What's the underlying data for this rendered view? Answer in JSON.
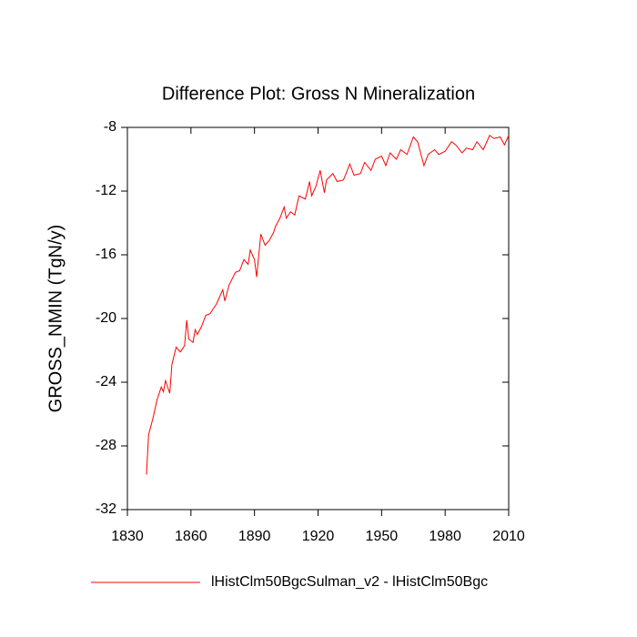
{
  "chart_data": {
    "type": "line",
    "title": "Difference Plot: Gross N Mineralization",
    "y_label": "GROSS_NMIN  (TgN/y)",
    "x": [
      1839,
      1840,
      1842,
      1844,
      1846,
      1847,
      1848,
      1849,
      1850,
      1851,
      1853,
      1855,
      1857,
      1858,
      1859,
      1861,
      1862,
      1863,
      1865,
      1867,
      1869,
      1872,
      1875,
      1876,
      1878,
      1881,
      1883,
      1885,
      1887,
      1888,
      1890,
      1891,
      1893,
      1895,
      1897,
      1899,
      1900,
      1902,
      1904,
      1905,
      1907,
      1909,
      1911,
      1914,
      1916,
      1917,
      1919,
      1921,
      1923,
      1924,
      1927,
      1929,
      1932,
      1935,
      1937,
      1940,
      1942,
      1945,
      1947,
      1950,
      1952,
      1954,
      1957,
      1959,
      1962,
      1965,
      1967,
      1970,
      1972,
      1975,
      1977,
      1980,
      1983,
      1985,
      1988,
      1990,
      1993,
      1995,
      1998,
      2001,
      2003,
      2006,
      2008,
      2010
    ],
    "series": [
      {
        "name": "lHistClm50BgcSulman_v2 - lHistClm50Bgc",
        "color": "#ff0000",
        "values": [
          -29.8,
          -27.3,
          -26.3,
          -25.1,
          -24.3,
          -24.6,
          -23.9,
          -24.3,
          -24.7,
          -22.9,
          -21.8,
          -22.1,
          -21.7,
          -20.1,
          -21.3,
          -21.5,
          -20.7,
          -21.0,
          -20.5,
          -19.8,
          -19.7,
          -19.1,
          -18.2,
          -18.9,
          -17.9,
          -17.1,
          -17.0,
          -16.3,
          -16.6,
          -15.7,
          -16.3,
          -17.4,
          -14.7,
          -15.4,
          -15.1,
          -14.6,
          -14.2,
          -13.7,
          -13.0,
          -13.7,
          -13.3,
          -13.5,
          -12.3,
          -12.5,
          -11.4,
          -12.3,
          -11.7,
          -10.7,
          -12.1,
          -11.3,
          -10.9,
          -11.4,
          -11.3,
          -10.3,
          -11.0,
          -10.9,
          -10.2,
          -10.7,
          -10.0,
          -9.8,
          -10.4,
          -9.6,
          -10.0,
          -9.4,
          -9.7,
          -8.6,
          -8.9,
          -10.4,
          -9.7,
          -9.4,
          -9.7,
          -9.5,
          -8.9,
          -9.1,
          -9.6,
          -9.3,
          -9.4,
          -8.9,
          -9.4,
          -8.5,
          -8.7,
          -8.6,
          -9.1,
          -8.5
        ]
      }
    ],
    "xlim": [
      1830,
      2010
    ],
    "xticks": [
      1830,
      1860,
      1890,
      1920,
      1950,
      1980,
      2010
    ],
    "ylim": [
      -32,
      -8
    ],
    "yticks": [
      -32,
      -28,
      -24,
      -20,
      -16,
      -12,
      -8
    ],
    "legend": "bottom"
  }
}
